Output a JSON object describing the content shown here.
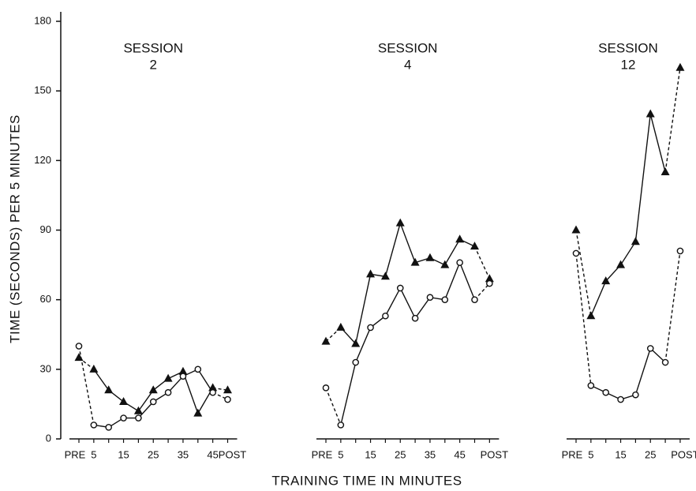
{
  "chart_data": [
    {
      "type": "line",
      "title": [
        "SESSION",
        "2"
      ],
      "ylabel": "TIME (SECONDS) PER 5 MINUTES",
      "ylim": [
        0,
        180
      ],
      "yticks": [
        0,
        30,
        60,
        90,
        120,
        150,
        180
      ],
      "categories": [
        "PRE",
        "5",
        null,
        "15",
        null,
        "25",
        null,
        "35",
        null,
        "45",
        "POST"
      ],
      "series": [
        {
          "marker": "triangle",
          "color": "#111111",
          "values": [
            35,
            30,
            21,
            16,
            12,
            21,
            26,
            29,
            11,
            22,
            21
          ]
        },
        {
          "marker": "circle",
          "color": "#111111",
          "values": [
            40,
            6,
            5,
            9,
            9,
            16,
            20,
            27,
            30,
            20,
            17
          ]
        }
      ]
    },
    {
      "type": "line",
      "title": [
        "SESSION",
        "4"
      ],
      "xlabel": "TRAINING TIME IN MINUTES",
      "ylim": [
        0,
        180
      ],
      "categories": [
        "PRE",
        "5",
        null,
        "15",
        null,
        "25",
        null,
        "35",
        null,
        "45",
        null,
        "POST"
      ],
      "series": [
        {
          "marker": "triangle",
          "color": "#111111",
          "values": [
            42,
            48,
            41,
            71,
            70,
            93,
            76,
            78,
            75,
            86,
            83,
            69
          ]
        },
        {
          "marker": "circle",
          "color": "#111111",
          "values": [
            22,
            6,
            33,
            48,
            53,
            65,
            52,
            61,
            60,
            76,
            60,
            67
          ]
        }
      ]
    },
    {
      "type": "line",
      "title": [
        "SESSION",
        "12"
      ],
      "ylim": [
        0,
        180
      ],
      "categories": [
        "PRE",
        "5",
        null,
        "15",
        null,
        "25",
        null,
        "POST"
      ],
      "series": [
        {
          "marker": "triangle",
          "color": "#111111",
          "values": [
            90,
            53,
            68,
            75,
            85,
            140,
            115,
            160
          ]
        },
        {
          "marker": "circle",
          "color": "#111111",
          "values": [
            80,
            23,
            20,
            17,
            19,
            39,
            33,
            81
          ]
        }
      ]
    }
  ]
}
